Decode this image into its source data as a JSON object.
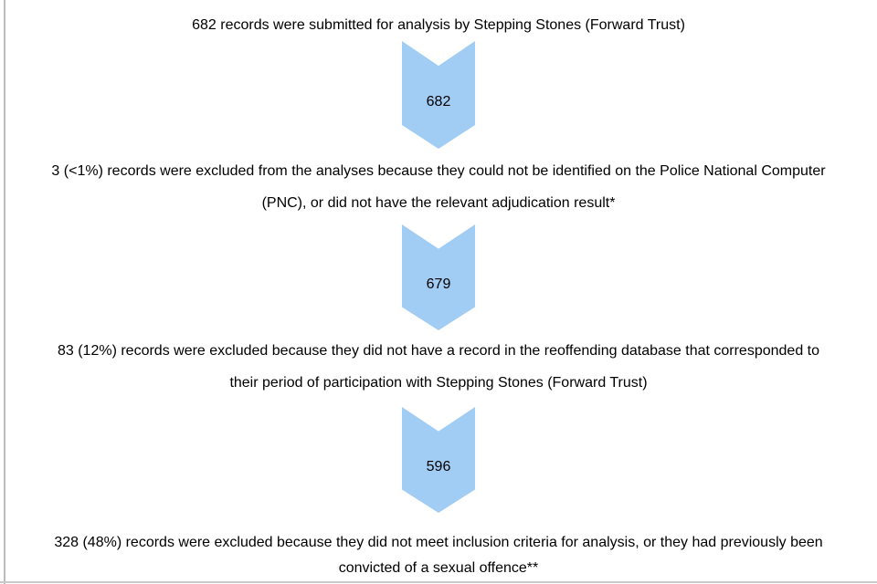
{
  "colors": {
    "background": "#ffffff",
    "text": "#000000",
    "arrow_fill": "#A1CCF4",
    "page_edge_left": "#bdbdbd",
    "page_edge_bottom": "#c9c9c9"
  },
  "flow": {
    "steps": [
      {
        "lines": [
          "682 records were submitted for analysis by Stepping Stones (Forward Trust)"
        ]
      },
      {
        "lines": [
          "3 (<1%) records were excluded from the analyses because they could not be identified on the Police National Computer",
          "(PNC), or did not have the relevant adjudication result*"
        ]
      },
      {
        "lines": [
          "83 (12%) records were excluded because they did not have a record in the reoffending database that corresponded to",
          "their period of participation with Stepping Stones (Forward Trust)"
        ]
      },
      {
        "lines": [
          "328 (48%) records were excluded because they did not meet inclusion criteria for analysis, or they had previously been",
          "convicted of a sexual offence**"
        ]
      }
    ],
    "arrows": [
      {
        "value": "682"
      },
      {
        "value": "679"
      },
      {
        "value": "596"
      }
    ]
  }
}
